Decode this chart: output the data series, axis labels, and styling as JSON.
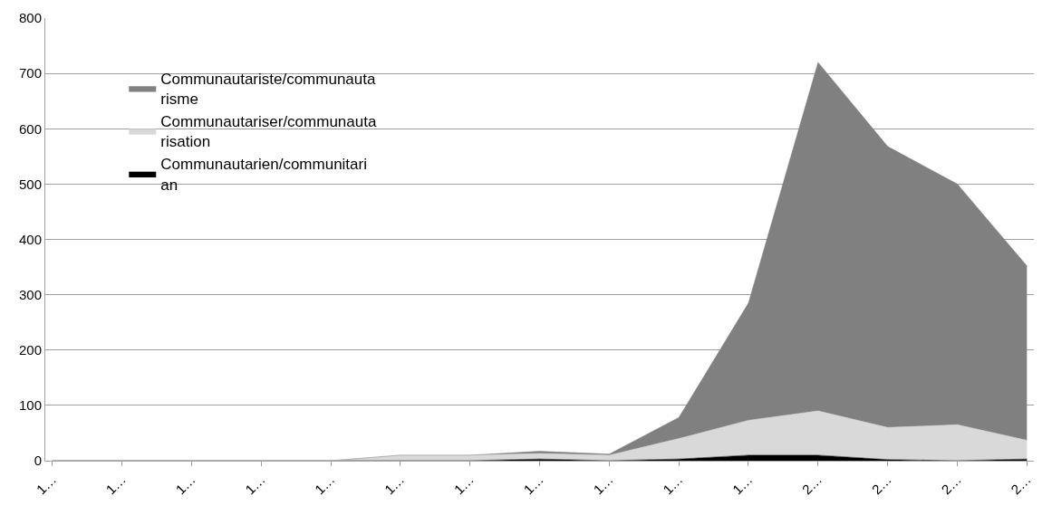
{
  "chart_data": {
    "type": "area",
    "stacked": true,
    "categories": [
      "1…",
      "1…",
      "1…",
      "1…",
      "1…",
      "1…",
      "1…",
      "1…",
      "1…",
      "1…",
      "1…",
      "2…",
      "2…",
      "2…",
      "2…"
    ],
    "series": [
      {
        "name": "Communautarien/communitarian",
        "color": "#000000",
        "values": [
          0,
          0,
          0,
          0,
          0,
          0,
          0,
          3,
          0,
          3,
          10,
          10,
          2,
          0,
          3
        ]
      },
      {
        "name": "Communautariser/communautarisation",
        "color": "#d9d9d9",
        "values": [
          0,
          0,
          0,
          0,
          0,
          10,
          10,
          10,
          10,
          37,
          63,
          80,
          58,
          65,
          34
        ]
      },
      {
        "name": "Communautariste/communautarisme",
        "color": "#808080",
        "values": [
          0,
          0,
          0,
          0,
          0,
          0,
          0,
          4,
          2,
          38,
          212,
          630,
          508,
          435,
          315
        ]
      }
    ],
    "ylim": [
      0,
      800
    ],
    "yticks": [
      0,
      100,
      200,
      300,
      400,
      500,
      600,
      700,
      800
    ],
    "grid": "y",
    "legend": "top left"
  }
}
